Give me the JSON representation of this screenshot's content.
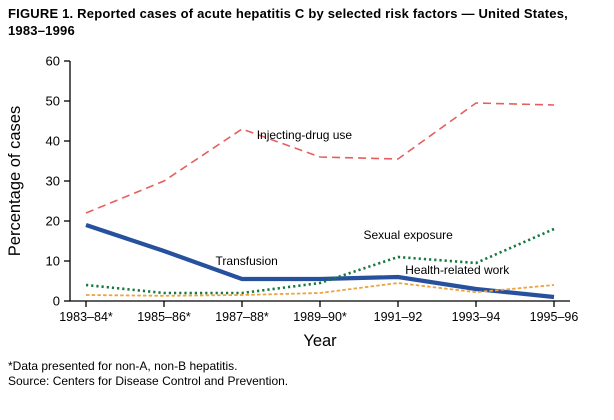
{
  "figure": {
    "title": "FIGURE 1. Reported cases of acute hepatitis C by selected risk factors — United States, 1983–1996",
    "footnotes": [
      "*Data presented for non-A, non-B hepatitis.",
      "Source: Centers for Disease Control and Prevention."
    ]
  },
  "chart_data": {
    "type": "line",
    "title": "FIGURE 1. Reported cases of acute hepatitis C by selected risk factors — United States, 1983–1996",
    "categories": [
      "1983–84*",
      "1985–86*",
      "1987–88*",
      "1989–90*",
      "1991–92",
      "1993–94",
      "1995–96"
    ],
    "xlabel": "Year",
    "ylabel": "Percentage of cases",
    "ylim": [
      0,
      60
    ],
    "yticks": [
      0,
      10,
      20,
      30,
      40,
      50,
      60
    ],
    "grid": false,
    "legend": "inline annotations",
    "series": [
      {
        "name": "Injecting-drug use",
        "color": "#e4605f",
        "style": "dashed",
        "width": 1.6,
        "values": [
          22,
          30,
          43,
          36,
          35.5,
          49.5,
          49
        ]
      },
      {
        "name": "Transfusion",
        "color": "#27519f",
        "style": "solid",
        "width": 4.2,
        "values": [
          19,
          12.5,
          5.5,
          5.5,
          6,
          3,
          1
        ]
      },
      {
        "name": "Sexual exposure",
        "color": "#157a3d",
        "style": "dotted",
        "width": 2.6,
        "values": [
          4,
          2,
          2,
          4.5,
          11,
          9.5,
          18
        ]
      },
      {
        "name": "Health-related work",
        "color": "#eda33f",
        "style": "dashdot",
        "width": 1.8,
        "values": [
          1.5,
          1.3,
          1.5,
          2,
          4.5,
          2.2,
          4
        ]
      }
    ],
    "annotations": [
      {
        "text": "Injecting-drug use",
        "xi": 2.8,
        "y": 40.5
      },
      {
        "text": "Transfusion",
        "xi": 2.06,
        "y": 9
      },
      {
        "text": "Sexual exposure",
        "xi": 4.13,
        "y": 15.5
      },
      {
        "text": "Health-related work",
        "xi": 4.76,
        "y": 6.75
      }
    ]
  }
}
